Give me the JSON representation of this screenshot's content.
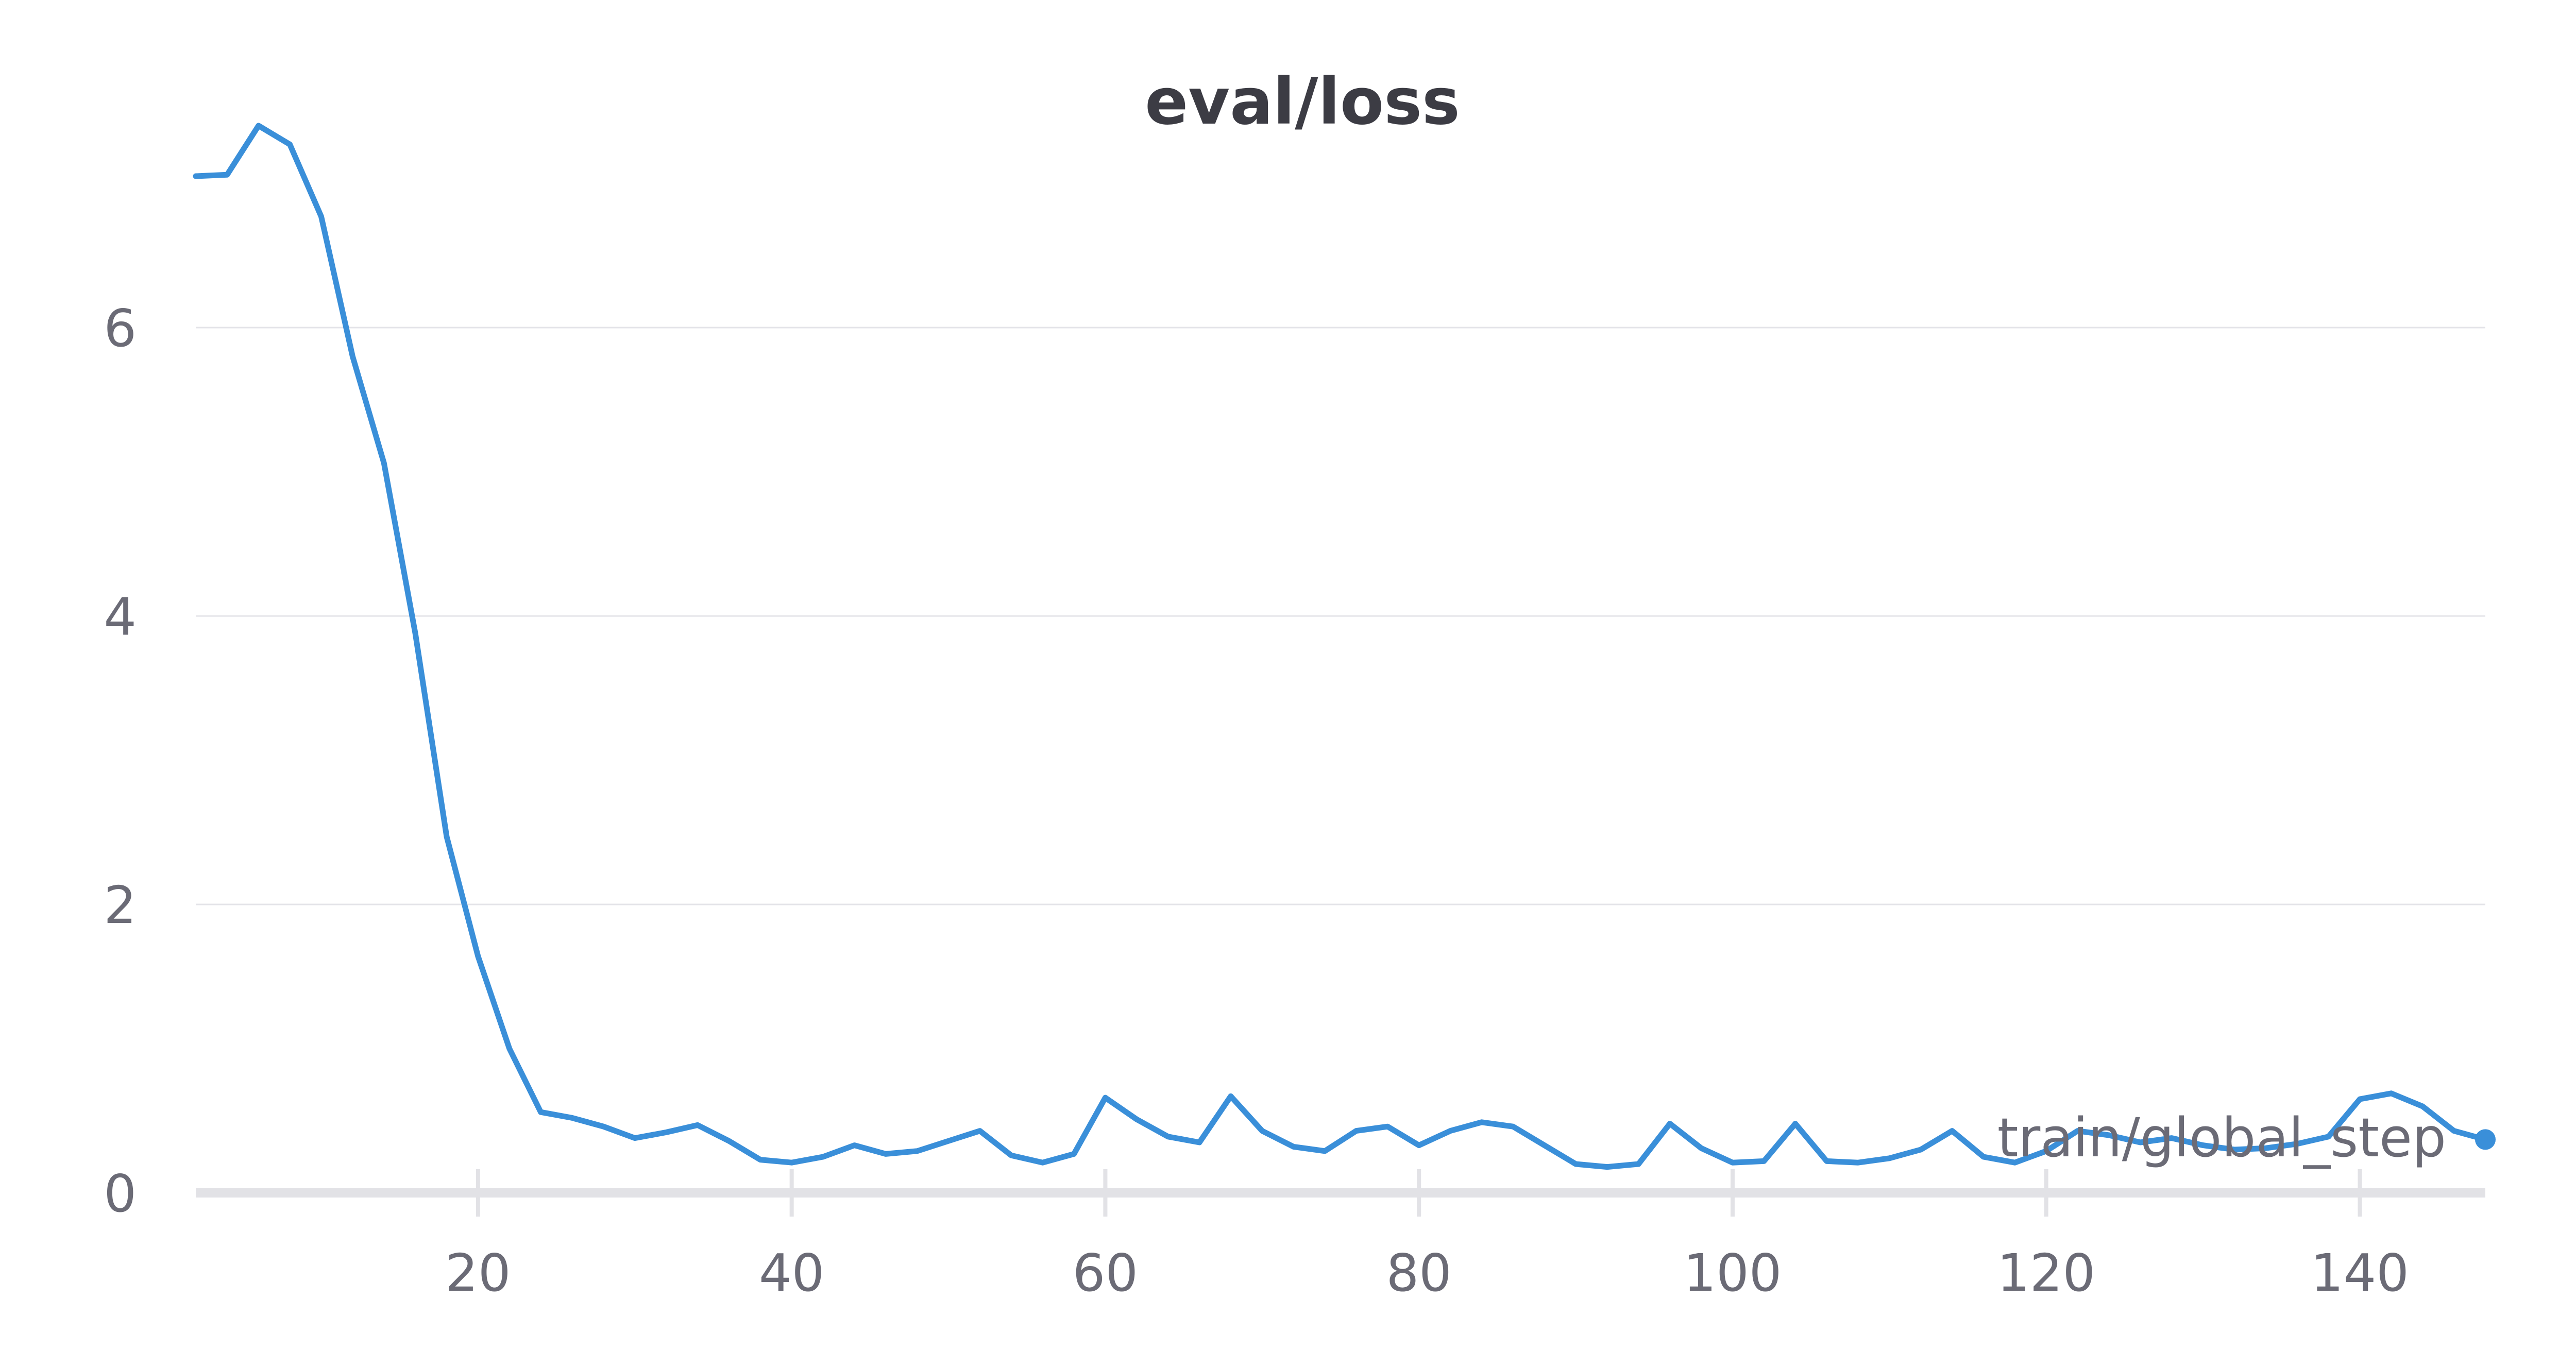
{
  "chart_data": {
    "type": "line",
    "title": "eval/loss",
    "xlabel": "train/global_step",
    "ylabel": "",
    "xlim": [
      2,
      148
    ],
    "ylim": [
      0,
      7.2
    ],
    "xticks": [
      20,
      40,
      60,
      80,
      100,
      120,
      140
    ],
    "xtick_labels": [
      "20",
      "40",
      "60",
      "80",
      "100",
      "120",
      "140"
    ],
    "yticks": [
      0,
      2,
      4,
      6
    ],
    "ytick_labels": [
      "0",
      "2",
      "4",
      "6"
    ],
    "grid": "horizontal",
    "legend": "none",
    "series": [
      {
        "color": "#3a8fd9",
        "x": [
          2,
          4,
          6,
          8,
          10,
          12,
          14,
          16,
          18,
          20,
          22,
          24,
          26,
          28,
          30,
          32,
          34,
          36,
          38,
          40,
          42,
          44,
          46,
          48,
          50,
          52,
          54,
          56,
          58,
          60,
          62,
          64,
          66,
          68,
          70,
          72,
          74,
          76,
          78,
          80,
          82,
          84,
          86,
          88,
          90,
          92,
          94,
          96,
          98,
          100,
          102,
          104,
          106,
          108,
          110,
          112,
          114,
          116,
          118,
          120,
          122,
          124,
          126,
          128,
          130,
          132,
          134,
          136,
          138,
          140,
          142,
          144,
          146,
          148
        ],
        "y": [
          7.05,
          7.06,
          7.4,
          7.27,
          6.77,
          5.8,
          5.06,
          3.88,
          2.47,
          1.64,
          1.0,
          0.56,
          0.52,
          0.46,
          0.38,
          0.42,
          0.47,
          0.36,
          0.23,
          0.21,
          0.25,
          0.33,
          0.27,
          0.29,
          0.36,
          0.43,
          0.26,
          0.21,
          0.27,
          0.66,
          0.51,
          0.39,
          0.35,
          0.67,
          0.43,
          0.32,
          0.29,
          0.43,
          0.46,
          0.33,
          0.43,
          0.49,
          0.46,
          0.33,
          0.2,
          0.18,
          0.2,
          0.48,
          0.31,
          0.21,
          0.22,
          0.48,
          0.22,
          0.21,
          0.24,
          0.3,
          0.43,
          0.25,
          0.21,
          0.29,
          0.43,
          0.4,
          0.35,
          0.38,
          0.33,
          0.3,
          0.31,
          0.34,
          0.39,
          0.65,
          0.69,
          0.6,
          0.43,
          0.37
        ]
      }
    ]
  }
}
